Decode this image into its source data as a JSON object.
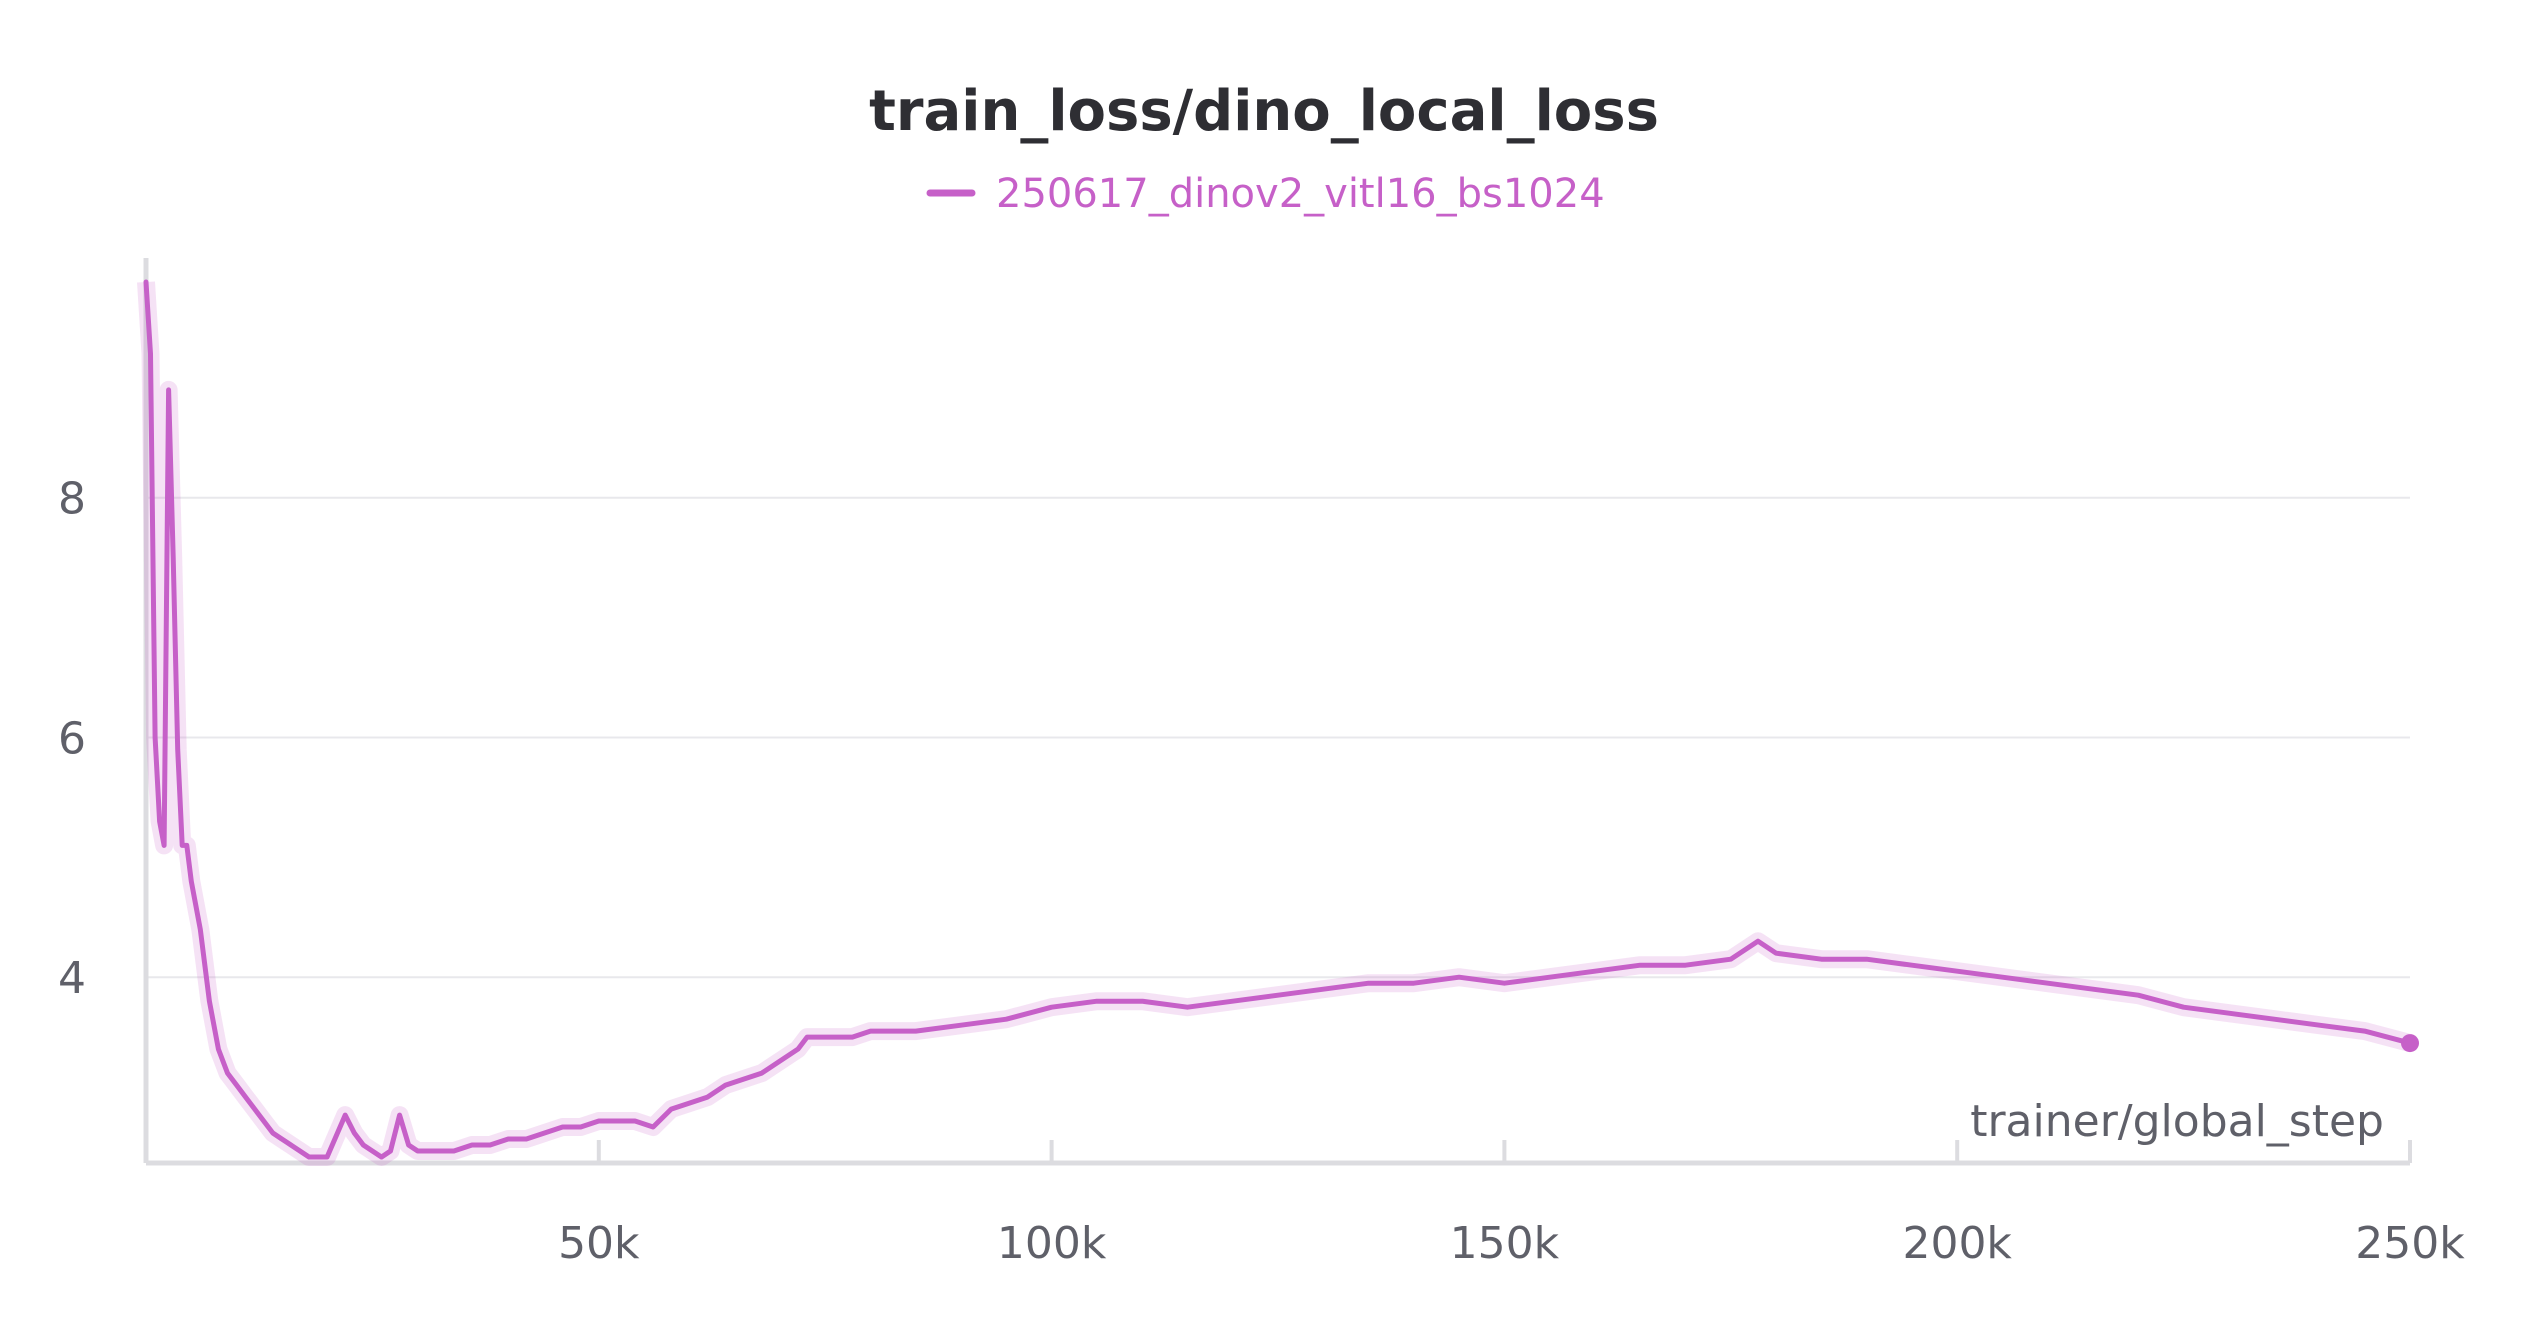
{
  "chart_data": {
    "type": "line",
    "title": "train_loss/dino_local_loss",
    "xlabel": "trainer/global_step",
    "ylabel": "",
    "xlim": [
      0,
      250000
    ],
    "ylim": [
      2.45,
      10.0
    ],
    "x_ticks": [
      50000,
      100000,
      150000,
      200000,
      250000
    ],
    "x_tick_labels": [
      "50k",
      "100k",
      "150k",
      "200k",
      "250k"
    ],
    "y_ticks": [
      4,
      6,
      8
    ],
    "y_tick_labels": [
      "4",
      "6",
      "8"
    ],
    "grid": true,
    "legend_position": "top-center",
    "series": [
      {
        "name": "250617_dinov2_vitl16_bs1024",
        "color": "#c660c8",
        "x": [
          0,
          500,
          1000,
          1500,
          2000,
          2500,
          3000,
          3500,
          4000,
          4500,
          5000,
          6000,
          7000,
          8000,
          9000,
          10000,
          11000,
          12000,
          13000,
          14000,
          15000,
          16000,
          18000,
          20000,
          22000,
          23000,
          24000,
          26000,
          27000,
          28000,
          29000,
          30000,
          32000,
          34000,
          36000,
          38000,
          40000,
          42000,
          44000,
          46000,
          48000,
          50000,
          52000,
          54000,
          56000,
          58000,
          60000,
          62000,
          64000,
          66000,
          68000,
          70000,
          72000,
          73000,
          75000,
          78000,
          80000,
          85000,
          90000,
          95000,
          100000,
          105000,
          110000,
          115000,
          120000,
          125000,
          130000,
          135000,
          140000,
          145000,
          150000,
          155000,
          160000,
          165000,
          170000,
          175000,
          178000,
          180000,
          185000,
          190000,
          195000,
          200000,
          205000,
          210000,
          215000,
          220000,
          225000,
          230000,
          235000,
          240000,
          245000,
          250000
        ],
        "values": [
          9.8,
          9.2,
          6.0,
          5.3,
          5.1,
          8.9,
          7.5,
          5.9,
          5.1,
          5.1,
          4.8,
          4.4,
          3.8,
          3.4,
          3.2,
          3.1,
          3.0,
          2.9,
          2.8,
          2.7,
          2.65,
          2.6,
          2.5,
          2.5,
          2.85,
          2.7,
          2.6,
          2.5,
          2.55,
          2.85,
          2.6,
          2.55,
          2.55,
          2.55,
          2.6,
          2.6,
          2.65,
          2.65,
          2.7,
          2.75,
          2.75,
          2.8,
          2.8,
          2.8,
          2.75,
          2.9,
          2.95,
          3.0,
          3.1,
          3.15,
          3.2,
          3.3,
          3.4,
          3.5,
          3.5,
          3.5,
          3.55,
          3.55,
          3.6,
          3.65,
          3.75,
          3.8,
          3.8,
          3.75,
          3.8,
          3.85,
          3.9,
          3.95,
          3.95,
          4.0,
          3.95,
          4.0,
          4.05,
          4.1,
          4.1,
          4.15,
          4.3,
          4.2,
          4.15,
          4.15,
          4.1,
          4.05,
          4.0,
          3.95,
          3.9,
          3.85,
          3.75,
          3.7,
          3.65,
          3.6,
          3.55,
          3.45
        ]
      }
    ]
  }
}
